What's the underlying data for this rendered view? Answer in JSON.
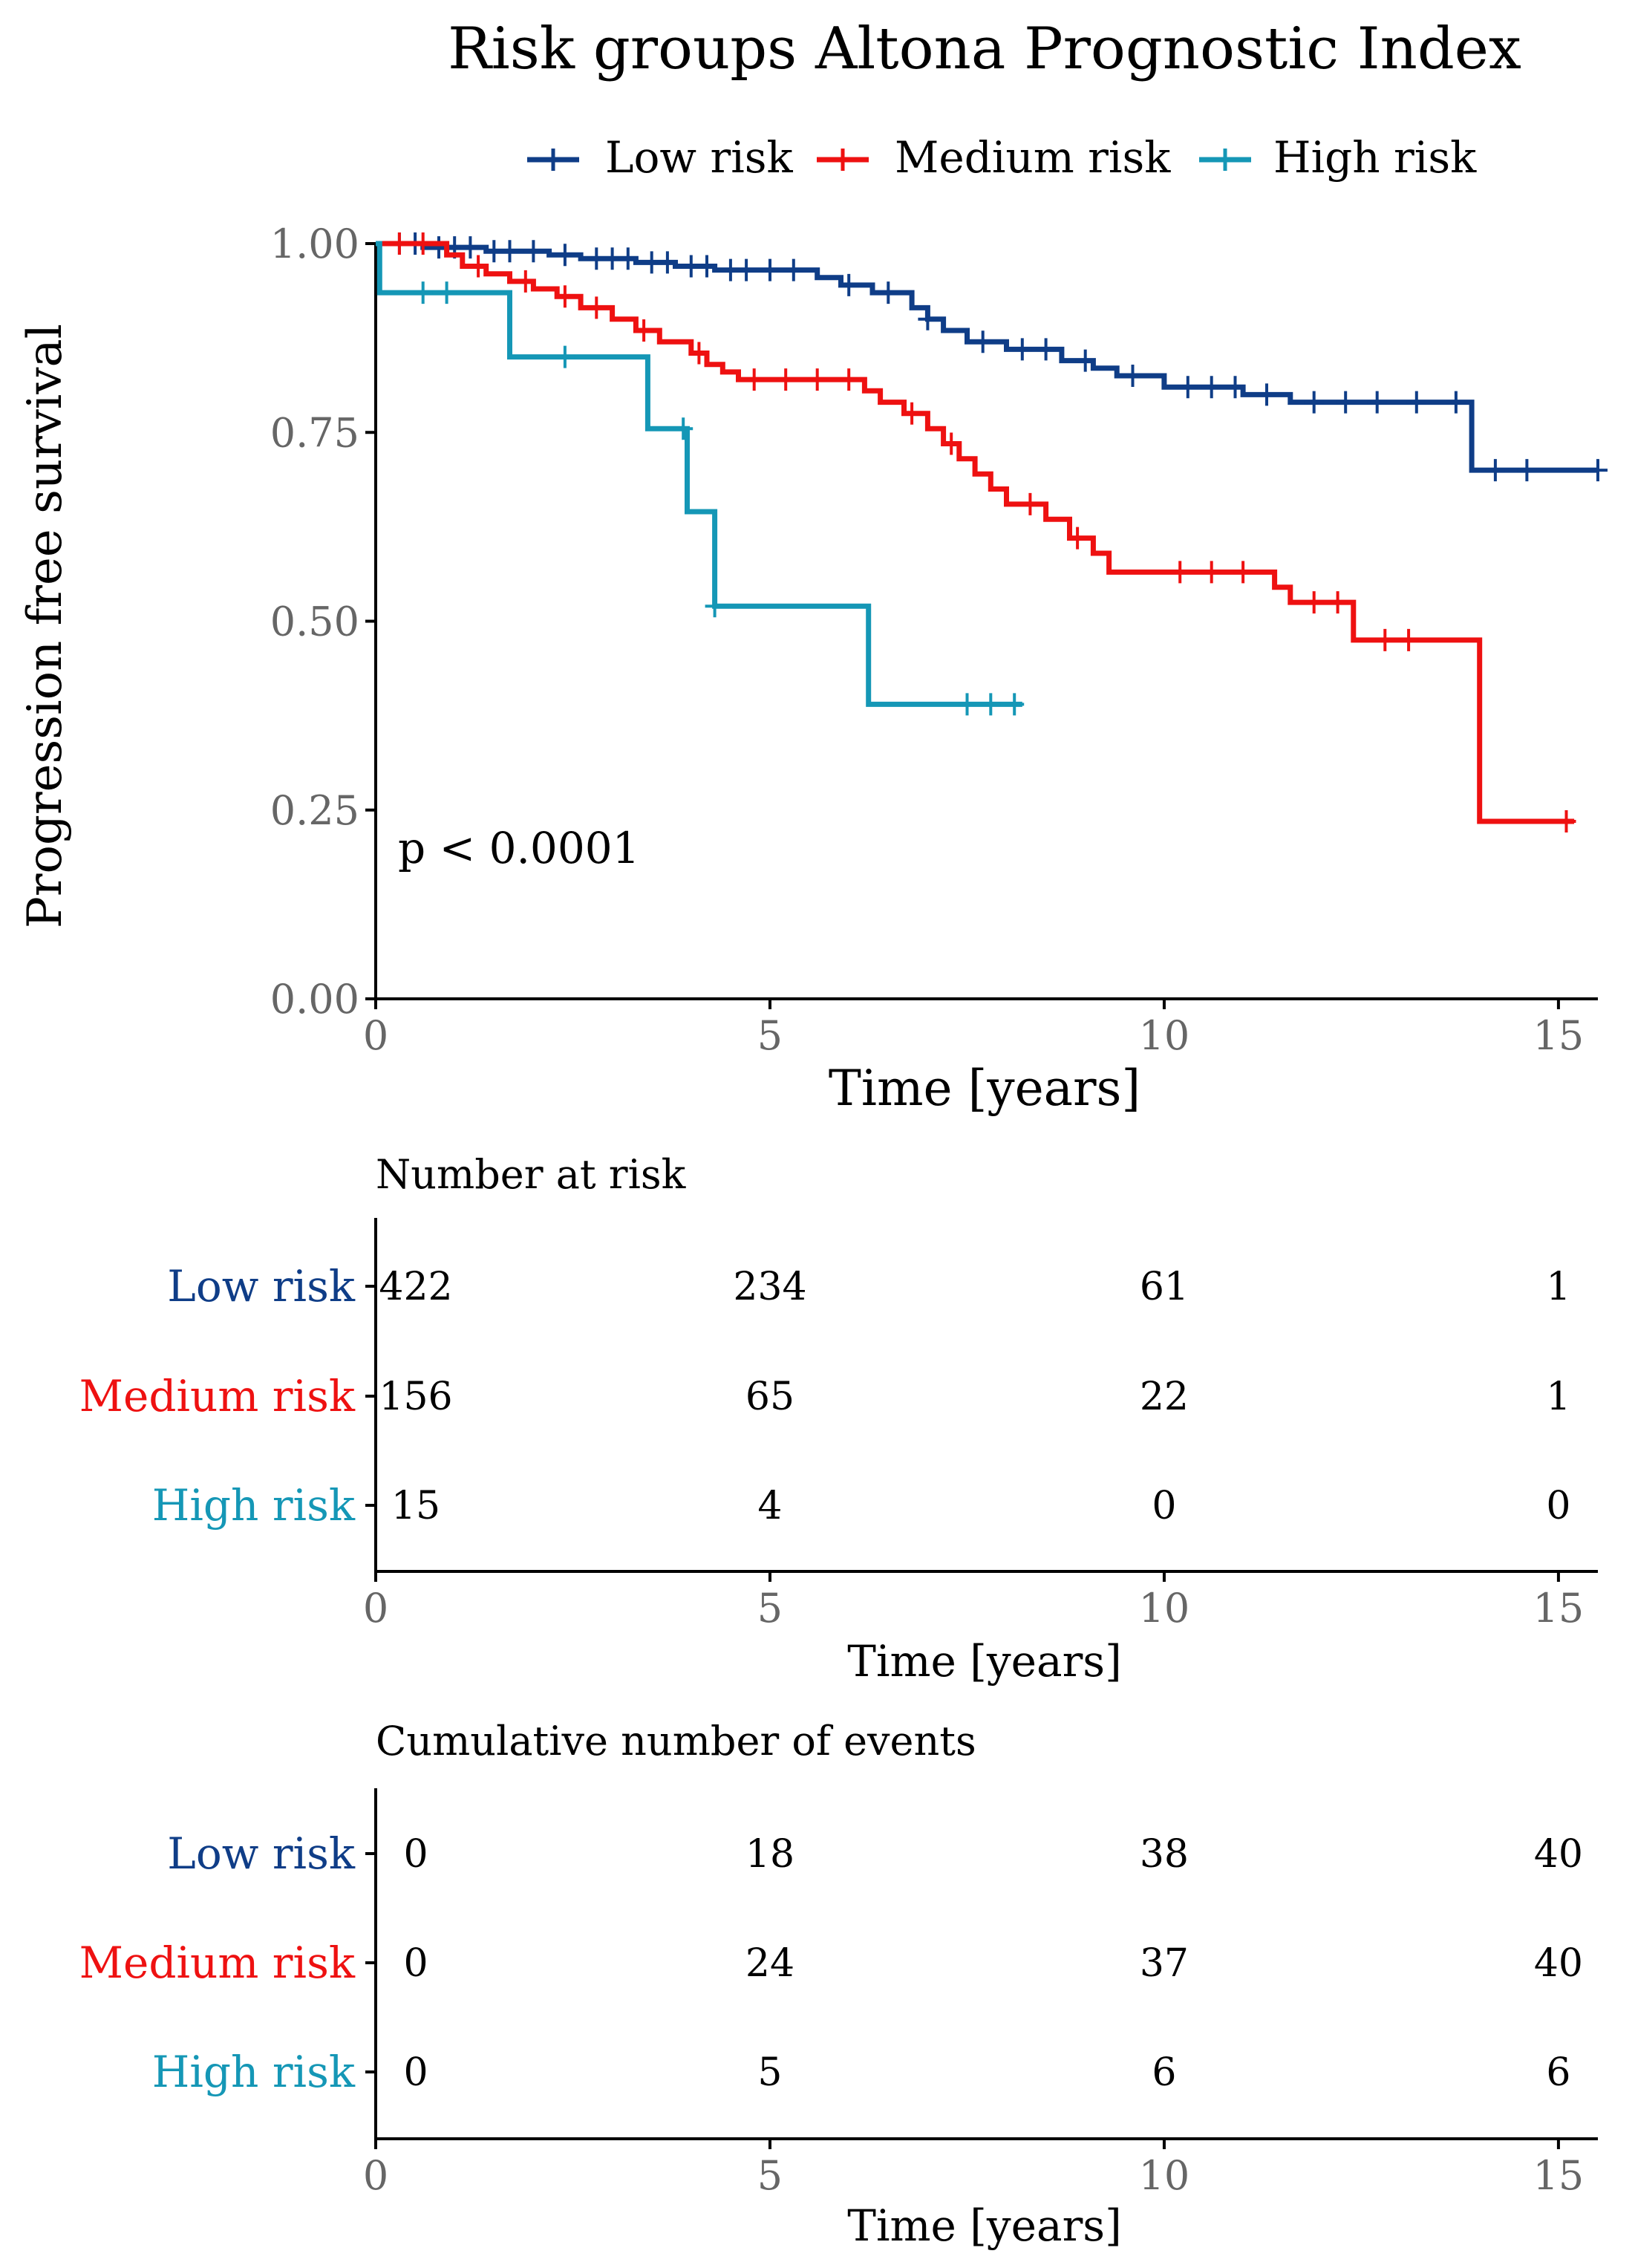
{
  "chart_data": {
    "type": "line",
    "subtype": "kaplan-meier",
    "title": "Risk groups Altona Prognostic Index",
    "xlabel": "Time [years]",
    "ylabel": "Progression free survival",
    "xlim": [
      0,
      15.5
    ],
    "ylim": [
      0,
      1
    ],
    "x_ticks": [
      0,
      5,
      10,
      15
    ],
    "y_ticks": [
      0.0,
      0.25,
      0.5,
      0.75,
      1.0
    ],
    "y_tick_labels": [
      "0.00",
      "0.25",
      "0.50",
      "0.75",
      "1.00"
    ],
    "legend_position": "top",
    "annotation": "p < 0.0001",
    "series": [
      {
        "name": "Low risk",
        "color": "#0f3d87",
        "steps": [
          [
            0,
            1.0
          ],
          [
            0.6,
            0.995
          ],
          [
            1.4,
            0.99
          ],
          [
            2.2,
            0.985
          ],
          [
            2.6,
            0.98
          ],
          [
            3.3,
            0.975
          ],
          [
            3.8,
            0.97
          ],
          [
            4.3,
            0.965
          ],
          [
            5.6,
            0.955
          ],
          [
            5.9,
            0.945
          ],
          [
            6.3,
            0.935
          ],
          [
            6.8,
            0.915
          ],
          [
            7.0,
            0.9
          ],
          [
            7.2,
            0.885
          ],
          [
            7.5,
            0.87
          ],
          [
            8.0,
            0.86
          ],
          [
            8.7,
            0.845
          ],
          [
            9.1,
            0.835
          ],
          [
            9.4,
            0.825
          ],
          [
            10.0,
            0.81
          ],
          [
            11.0,
            0.8
          ],
          [
            11.6,
            0.79
          ],
          [
            13.9,
            0.7
          ],
          [
            15.5,
            0.7
          ]
        ],
        "censors": [
          0.3,
          0.5,
          0.8,
          1.0,
          1.2,
          1.5,
          1.7,
          2.0,
          2.4,
          2.8,
          3.0,
          3.2,
          3.5,
          3.7,
          4.0,
          4.2,
          4.5,
          4.7,
          5.0,
          5.3,
          6.0,
          6.5,
          7.0,
          7.7,
          8.2,
          8.5,
          9.0,
          9.6,
          10.3,
          10.6,
          10.9,
          11.3,
          11.9,
          12.3,
          12.7,
          13.2,
          13.7,
          14.2,
          14.6,
          15.5
        ]
      },
      {
        "name": "Medium risk",
        "color": "#ee1111",
        "steps": [
          [
            0,
            1.0
          ],
          [
            0.9,
            0.985
          ],
          [
            1.1,
            0.97
          ],
          [
            1.4,
            0.96
          ],
          [
            1.7,
            0.95
          ],
          [
            2.0,
            0.94
          ],
          [
            2.3,
            0.93
          ],
          [
            2.6,
            0.915
          ],
          [
            3.0,
            0.9
          ],
          [
            3.3,
            0.885
          ],
          [
            3.6,
            0.87
          ],
          [
            4.0,
            0.855
          ],
          [
            4.2,
            0.84
          ],
          [
            4.4,
            0.83
          ],
          [
            4.6,
            0.82
          ],
          [
            6.2,
            0.805
          ],
          [
            6.4,
            0.79
          ],
          [
            6.7,
            0.775
          ],
          [
            7.0,
            0.755
          ],
          [
            7.2,
            0.735
          ],
          [
            7.4,
            0.715
          ],
          [
            7.6,
            0.695
          ],
          [
            7.8,
            0.675
          ],
          [
            8.0,
            0.655
          ],
          [
            8.5,
            0.635
          ],
          [
            8.8,
            0.61
          ],
          [
            9.1,
            0.59
          ],
          [
            9.3,
            0.565
          ],
          [
            11.4,
            0.545
          ],
          [
            11.6,
            0.525
          ],
          [
            12.4,
            0.475
          ],
          [
            14.0,
            0.235
          ],
          [
            15.2,
            0.235
          ]
        ],
        "censors": [
          0.3,
          0.6,
          1.3,
          1.9,
          2.4,
          2.8,
          3.4,
          4.1,
          4.8,
          5.2,
          5.6,
          6.0,
          6.8,
          7.3,
          8.3,
          8.9,
          10.2,
          10.6,
          11.0,
          11.9,
          12.2,
          12.8,
          13.1,
          15.1
        ]
      },
      {
        "name": "High risk",
        "color": "#1597b6",
        "steps": [
          [
            0,
            1.0
          ],
          [
            0.05,
            0.935
          ],
          [
            1.7,
            0.85
          ],
          [
            3.45,
            0.755
          ],
          [
            3.95,
            0.645
          ],
          [
            4.3,
            0.52
          ],
          [
            6.25,
            0.39
          ],
          [
            8.2,
            0.39
          ]
        ],
        "censors": [
          0.6,
          0.9,
          2.4,
          3.9,
          4.3,
          7.5,
          7.8,
          8.1
        ]
      }
    ],
    "risk_table": {
      "title": "Number at risk",
      "xlabel": "Time [years]",
      "rows": [
        {
          "name": "Low risk",
          "values": [
            "422",
            "234",
            "61",
            "1"
          ]
        },
        {
          "name": "Medium risk",
          "values": [
            "156",
            "65",
            "22",
            "1"
          ]
        },
        {
          "name": "High risk",
          "values": [
            "15",
            "4",
            "0",
            "0"
          ]
        }
      ]
    },
    "events_table": {
      "title": "Cumulative number of events",
      "xlabel": "Time [years]",
      "rows": [
        {
          "name": "Low risk",
          "values": [
            "0",
            "18",
            "38",
            "40"
          ]
        },
        {
          "name": "Medium risk",
          "values": [
            "0",
            "24",
            "37",
            "40"
          ]
        },
        {
          "name": "High risk",
          "values": [
            "0",
            "5",
            "6",
            "6"
          ]
        }
      ]
    }
  }
}
